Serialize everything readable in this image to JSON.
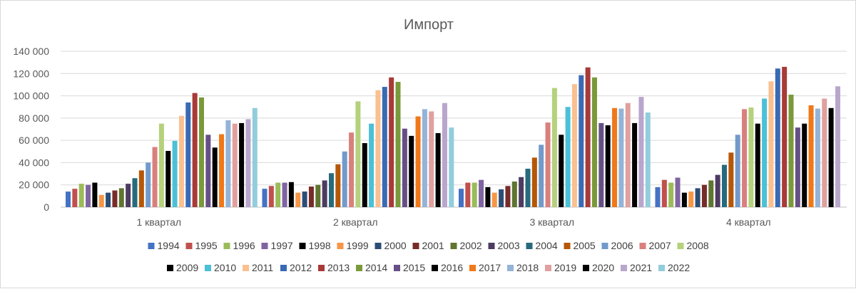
{
  "chart_data": {
    "type": "bar",
    "title": "Импорт",
    "xlabel": "",
    "ylabel": "",
    "ylim": [
      0,
      140000
    ],
    "yticks": [
      0,
      20000,
      40000,
      60000,
      80000,
      100000,
      120000,
      140000
    ],
    "ytick_labels": [
      "0",
      "20 000",
      "40 000",
      "60 000",
      "80 000",
      "100 000",
      "120 000",
      "140 000"
    ],
    "grid": true,
    "legend_position": "bottom",
    "categories": [
      "1 квартал",
      "2 квартал",
      "3 квартал",
      "4 квартал"
    ],
    "series": [
      {
        "name": "1994",
        "color": "#4472c4",
        "values": [
          14000,
          16500,
          16500,
          18000
        ]
      },
      {
        "name": "1995",
        "color": "#c0504d",
        "values": [
          16500,
          19000,
          22000,
          24500
        ]
      },
      {
        "name": "1996",
        "color": "#9bbb59",
        "values": [
          21000,
          22000,
          22000,
          22000
        ]
      },
      {
        "name": "1997",
        "color": "#8064a2",
        "values": [
          20000,
          22000,
          24500,
          26500
        ]
      },
      {
        "name": "1998",
        "color": "#000000",
        "values": [
          22000,
          22500,
          18000,
          13000
        ]
      },
      {
        "name": "1999",
        "color": "#f79646",
        "values": [
          11000,
          13000,
          13000,
          14000
        ]
      },
      {
        "name": "2000",
        "color": "#2c4d75",
        "values": [
          13000,
          14000,
          16000,
          17000
        ]
      },
      {
        "name": "2001",
        "color": "#772c2a",
        "values": [
          15000,
          18500,
          19000,
          20000
        ]
      },
      {
        "name": "2002",
        "color": "#5f7530",
        "values": [
          17000,
          20000,
          23000,
          24000
        ]
      },
      {
        "name": "2003",
        "color": "#4d3b62",
        "values": [
          21000,
          24000,
          27000,
          29000
        ]
      },
      {
        "name": "2004",
        "color": "#276a7c",
        "values": [
          26000,
          30500,
          34500,
          38000
        ]
      },
      {
        "name": "2005",
        "color": "#b65708",
        "values": [
          33000,
          38500,
          44500,
          49000
        ]
      },
      {
        "name": "2006",
        "color": "#729aca",
        "values": [
          40000,
          50000,
          56000,
          65000
        ]
      },
      {
        "name": "2007",
        "color": "#d9807d",
        "values": [
          54000,
          67000,
          76000,
          88000
        ]
      },
      {
        "name": "2008",
        "color": "#b5d17c",
        "values": [
          75000,
          95000,
          107000,
          89500
        ]
      },
      {
        "name": "2009",
        "color": "#000000",
        "values": [
          50500,
          57500,
          65000,
          75000
        ]
      },
      {
        "name": "2010",
        "color": "#4bc0d6",
        "values": [
          59500,
          75000,
          90000,
          97500
        ]
      },
      {
        "name": "2011",
        "color": "#fac090",
        "values": [
          82000,
          105000,
          110500,
          113000
        ]
      },
      {
        "name": "2012",
        "color": "#3a6ab4",
        "values": [
          94000,
          108000,
          118500,
          124500
        ]
      },
      {
        "name": "2013",
        "color": "#a83a37",
        "values": [
          102500,
          116500,
          125500,
          126000
        ]
      },
      {
        "name": "2014",
        "color": "#7a9a3a",
        "values": [
          98500,
          112500,
          116500,
          101000
        ]
      },
      {
        "name": "2015",
        "color": "#664f85",
        "values": [
          65000,
          70500,
          75500,
          71500
        ]
      },
      {
        "name": "2016",
        "color": "#000000",
        "values": [
          53500,
          64000,
          73500,
          75000
        ]
      },
      {
        "name": "2017",
        "color": "#f07818",
        "values": [
          65500,
          81500,
          89000,
          91500
        ]
      },
      {
        "name": "2018",
        "color": "#94b3d7",
        "values": [
          78000,
          88000,
          88500,
          88500
        ]
      },
      {
        "name": "2019",
        "color": "#e0a09e",
        "values": [
          75000,
          86000,
          93500,
          97500
        ]
      },
      {
        "name": "2020",
        "color": "#000000",
        "values": [
          75500,
          66500,
          75500,
          89000
        ]
      },
      {
        "name": "2021",
        "color": "#b9a6cc",
        "values": [
          79000,
          93500,
          99000,
          108500
        ]
      },
      {
        "name": "2022",
        "color": "#92cddc",
        "values": [
          89000,
          71500,
          85000,
          null
        ]
      }
    ]
  }
}
